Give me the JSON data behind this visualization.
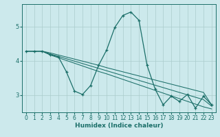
{
  "xlabel": "Humidex (Indice chaleur)",
  "bg_color": "#cce9ec",
  "grid_color": "#aacccc",
  "line_color": "#1a6e68",
  "x_values": [
    0,
    1,
    2,
    3,
    4,
    5,
    6,
    7,
    8,
    9,
    10,
    11,
    12,
    13,
    14,
    15,
    16,
    17,
    18,
    19,
    20,
    21,
    22,
    23
  ],
  "y_main": [
    4.28,
    4.28,
    4.28,
    4.18,
    4.12,
    3.68,
    3.12,
    3.02,
    3.28,
    3.87,
    4.32,
    4.97,
    5.32,
    5.42,
    5.18,
    3.87,
    3.18,
    2.72,
    2.97,
    2.82,
    3.02,
    2.62,
    2.97,
    2.72
  ],
  "y_line1": [
    4.28,
    4.28,
    4.28,
    4.23,
    4.17,
    4.11,
    4.05,
    3.99,
    3.93,
    3.87,
    3.8,
    3.74,
    3.68,
    3.62,
    3.56,
    3.5,
    3.44,
    3.38,
    3.32,
    3.26,
    3.2,
    3.14,
    3.08,
    2.72
  ],
  "y_line2": [
    4.28,
    4.28,
    4.28,
    4.2,
    4.13,
    4.06,
    3.99,
    3.92,
    3.85,
    3.78,
    3.71,
    3.64,
    3.57,
    3.5,
    3.43,
    3.36,
    3.29,
    3.22,
    3.15,
    3.08,
    3.01,
    2.94,
    2.87,
    2.68
  ],
  "y_line3": [
    4.28,
    4.28,
    4.28,
    4.17,
    4.09,
    4.01,
    3.93,
    3.85,
    3.77,
    3.69,
    3.62,
    3.54,
    3.46,
    3.38,
    3.3,
    3.22,
    3.14,
    3.06,
    2.98,
    2.9,
    2.82,
    2.74,
    2.66,
    2.6
  ],
  "ylim": [
    2.5,
    5.65
  ],
  "xlim": [
    -0.5,
    23.5
  ],
  "yticks": [
    3,
    4,
    5
  ],
  "xticks": [
    0,
    1,
    2,
    3,
    4,
    5,
    6,
    7,
    8,
    9,
    10,
    11,
    12,
    13,
    14,
    15,
    16,
    17,
    18,
    19,
    20,
    21,
    22,
    23
  ],
  "xlabel_fontsize": 6.5,
  "tick_fontsize": 5.5,
  "lw_main": 0.9,
  "lw_lines": 0.75
}
